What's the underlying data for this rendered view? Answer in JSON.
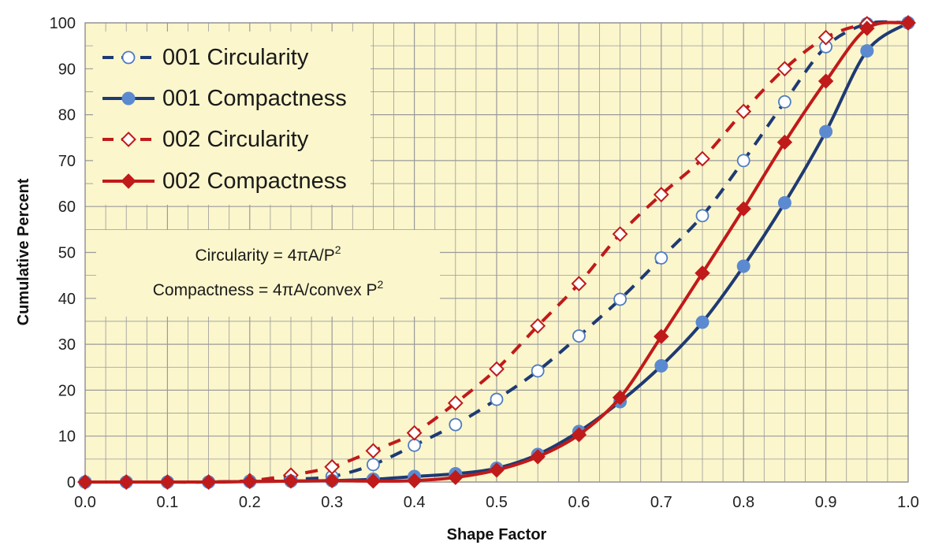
{
  "chart_data": {
    "type": "line",
    "title": "",
    "xlabel": "Shape Factor",
    "ylabel": "Cumulative Percent",
    "xlim": [
      0.0,
      1.0
    ],
    "ylim": [
      0,
      100
    ],
    "xticks": [
      "0.0",
      "0.1",
      "0.2",
      "0.3",
      "0.4",
      "0.5",
      "0.6",
      "0.7",
      "0.8",
      "0.9",
      "1.0"
    ],
    "yticks": [
      "0",
      "10",
      "20",
      "30",
      "40",
      "50",
      "60",
      "70",
      "80",
      "90",
      "100"
    ],
    "grid": "on, minor x gridlines every 0.025",
    "legend_position": "top-left",
    "x": [
      0.0,
      0.05,
      0.1,
      0.15,
      0.2,
      0.25,
      0.3,
      0.35,
      0.4,
      0.45,
      0.5,
      0.55,
      0.6,
      0.65,
      0.7,
      0.75,
      0.8,
      0.85,
      0.9,
      0.95,
      1.0
    ],
    "series": [
      {
        "name": "001 Circularity",
        "color": "#1f3a73",
        "line": "dashed",
        "marker": "circle-open",
        "values": [
          0,
          0,
          0,
          0,
          0.2,
          0.6,
          1.2,
          3.8,
          8.0,
          12.5,
          18.0,
          24.2,
          31.8,
          39.8,
          48.8,
          58.0,
          70.0,
          82.8,
          94.8,
          99.8,
          100
        ]
      },
      {
        "name": "001 Compactness",
        "color": "#1f3a73",
        "line": "solid",
        "marker": "circle-filled",
        "values": [
          0,
          0,
          0,
          0,
          0.1,
          0.2,
          0.3,
          0.6,
          1.2,
          1.8,
          3.0,
          6.0,
          11.0,
          17.5,
          25.3,
          34.8,
          47.0,
          60.8,
          76.3,
          93.9,
          100
        ]
      },
      {
        "name": "002 Circularity",
        "color": "#c01a1a",
        "line": "dashed",
        "marker": "diamond-open",
        "values": [
          0,
          0,
          0,
          0,
          0.3,
          1.5,
          3.3,
          6.8,
          10.7,
          17.2,
          24.6,
          34.0,
          43.2,
          54.0,
          62.6,
          70.4,
          80.7,
          90.0,
          96.8,
          99.8,
          100
        ]
      },
      {
        "name": "002 Compactness",
        "color": "#c01a1a",
        "line": "solid",
        "marker": "diamond-filled",
        "values": [
          0,
          0,
          0,
          0,
          0.1,
          0.2,
          0.3,
          0.2,
          0.3,
          1.0,
          2.6,
          5.5,
          10.3,
          18.4,
          31.7,
          45.5,
          59.5,
          74.0,
          87.3,
          98.8,
          100
        ]
      }
    ],
    "annotation": {
      "line1": "Circularity = 4πA/P",
      "line1_sup": "2",
      "line2": "Compactness = 4πA/convex P",
      "line2_sup": "2"
    }
  },
  "colors": {
    "plot_background": "#fbf6cc",
    "grid": "#9a9a9a",
    "legend_background": "#fbf6cc"
  }
}
